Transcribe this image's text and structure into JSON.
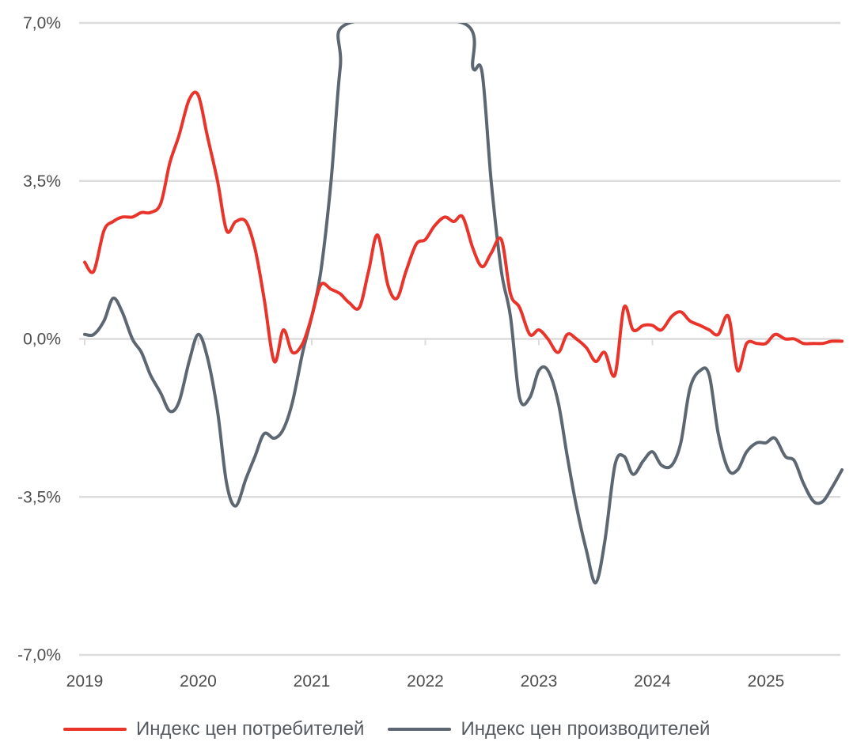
{
  "chart_data": {
    "type": "line",
    "title": "",
    "xlabel": "",
    "ylabel": "",
    "x_ticks": [
      "2019",
      "2020",
      "2021",
      "2022",
      "2023",
      "2024",
      "2025"
    ],
    "y_ticks": [
      "7,0%",
      "3,5%",
      "0,0%",
      "-3,5%",
      "-7,0%"
    ],
    "y_tick_values": [
      7.0,
      3.5,
      0.0,
      -3.5,
      -7.0
    ],
    "ylim": [
      -7.0,
      7.0
    ],
    "xlim": [
      2019.0,
      2025.67
    ],
    "grid": "horizontal",
    "legend_position": "bottom",
    "series": [
      {
        "name": "Индекс цен потребителей",
        "color": "#e8342a",
        "x": [
          2019.0,
          2019.08,
          2019.17,
          2019.25,
          2019.33,
          2019.42,
          2019.5,
          2019.58,
          2019.67,
          2019.75,
          2019.83,
          2019.92,
          2020.0,
          2020.08,
          2020.17,
          2020.25,
          2020.33,
          2020.42,
          2020.5,
          2020.58,
          2020.67,
          2020.75,
          2020.83,
          2020.92,
          2021.0,
          2021.08,
          2021.17,
          2021.25,
          2021.33,
          2021.42,
          2021.5,
          2021.58,
          2021.67,
          2021.75,
          2021.83,
          2021.92,
          2022.0,
          2022.08,
          2022.17,
          2022.25,
          2022.33,
          2022.42,
          2022.5,
          2022.58,
          2022.67,
          2022.75,
          2022.83,
          2022.92,
          2023.0,
          2023.08,
          2023.17,
          2023.25,
          2023.33,
          2023.42,
          2023.5,
          2023.58,
          2023.67,
          2023.75,
          2023.83,
          2023.92,
          2024.0,
          2024.08,
          2024.17,
          2024.25,
          2024.33,
          2024.42,
          2024.5,
          2024.58,
          2024.67,
          2024.75,
          2024.83,
          2024.92,
          2025.0,
          2025.08,
          2025.17,
          2025.25,
          2025.33,
          2025.42,
          2025.5,
          2025.58,
          2025.67
        ],
        "values": [
          1.7,
          1.5,
          2.4,
          2.6,
          2.7,
          2.7,
          2.8,
          2.8,
          3.0,
          3.9,
          4.5,
          5.3,
          5.4,
          4.5,
          3.5,
          2.4,
          2.6,
          2.6,
          2.0,
          0.9,
          -0.5,
          0.2,
          -0.3,
          -0.1,
          0.5,
          1.2,
          1.1,
          1.0,
          0.8,
          0.7,
          1.5,
          2.3,
          1.2,
          0.9,
          1.5,
          2.1,
          2.2,
          2.5,
          2.7,
          2.6,
          2.7,
          2.0,
          1.6,
          1.9,
          2.2,
          1.0,
          0.7,
          0.1,
          0.2,
          0.0,
          -0.3,
          0.1,
          0.0,
          -0.2,
          -0.5,
          -0.3,
          -0.8,
          0.7,
          0.2,
          0.3,
          0.3,
          0.2,
          0.5,
          0.6,
          0.4,
          0.3,
          0.2,
          0.1,
          0.5,
          -0.7,
          -0.1,
          -0.1,
          -0.1,
          0.1,
          0.0,
          0.0,
          -0.1,
          -0.1,
          -0.1,
          -0.05,
          -0.05
        ]
      },
      {
        "name": "Индекс цен производителей",
        "color": "#5d6771",
        "x": [
          2019.0,
          2019.08,
          2019.17,
          2019.25,
          2019.33,
          2019.42,
          2019.5,
          2019.58,
          2019.67,
          2019.75,
          2019.83,
          2019.92,
          2020.0,
          2020.08,
          2020.17,
          2020.25,
          2020.33,
          2020.42,
          2020.5,
          2020.58,
          2020.67,
          2020.75,
          2020.83,
          2020.92,
          2021.0,
          2021.08,
          2021.17,
          2021.25,
          2021.33,
          2022.33,
          2022.42,
          2022.5,
          2022.58,
          2022.67,
          2022.75,
          2022.83,
          2022.92,
          2023.0,
          2023.08,
          2023.17,
          2023.25,
          2023.33,
          2023.42,
          2023.5,
          2023.58,
          2023.67,
          2023.75,
          2023.83,
          2023.92,
          2024.0,
          2024.08,
          2024.17,
          2024.25,
          2024.33,
          2024.42,
          2024.5,
          2024.58,
          2024.67,
          2024.75,
          2024.83,
          2024.92,
          2025.0,
          2025.08,
          2025.17,
          2025.25,
          2025.33,
          2025.42,
          2025.5,
          2025.58,
          2025.67
        ],
        "values": [
          0.1,
          0.1,
          0.4,
          0.9,
          0.6,
          0.0,
          -0.3,
          -0.8,
          -1.2,
          -1.6,
          -1.4,
          -0.5,
          0.1,
          -0.4,
          -1.6,
          -3.2,
          -3.7,
          -3.1,
          -2.6,
          -2.1,
          -2.2,
          -2.0,
          -1.4,
          -0.3,
          0.5,
          1.5,
          3.5,
          6.0,
          7.0,
          7.0,
          6.0,
          5.9,
          3.5,
          1.5,
          0.5,
          -1.3,
          -1.3,
          -0.7,
          -0.7,
          -1.4,
          -2.6,
          -3.7,
          -4.7,
          -5.4,
          -4.5,
          -2.8,
          -2.6,
          -3.0,
          -2.7,
          -2.5,
          -2.8,
          -2.8,
          -2.3,
          -1.1,
          -0.7,
          -0.8,
          -2.1,
          -2.9,
          -2.9,
          -2.5,
          -2.3,
          -2.3,
          -2.2,
          -2.6,
          -2.7,
          -3.2,
          -3.6,
          -3.6,
          -3.3,
          -2.9
        ]
      }
    ]
  }
}
